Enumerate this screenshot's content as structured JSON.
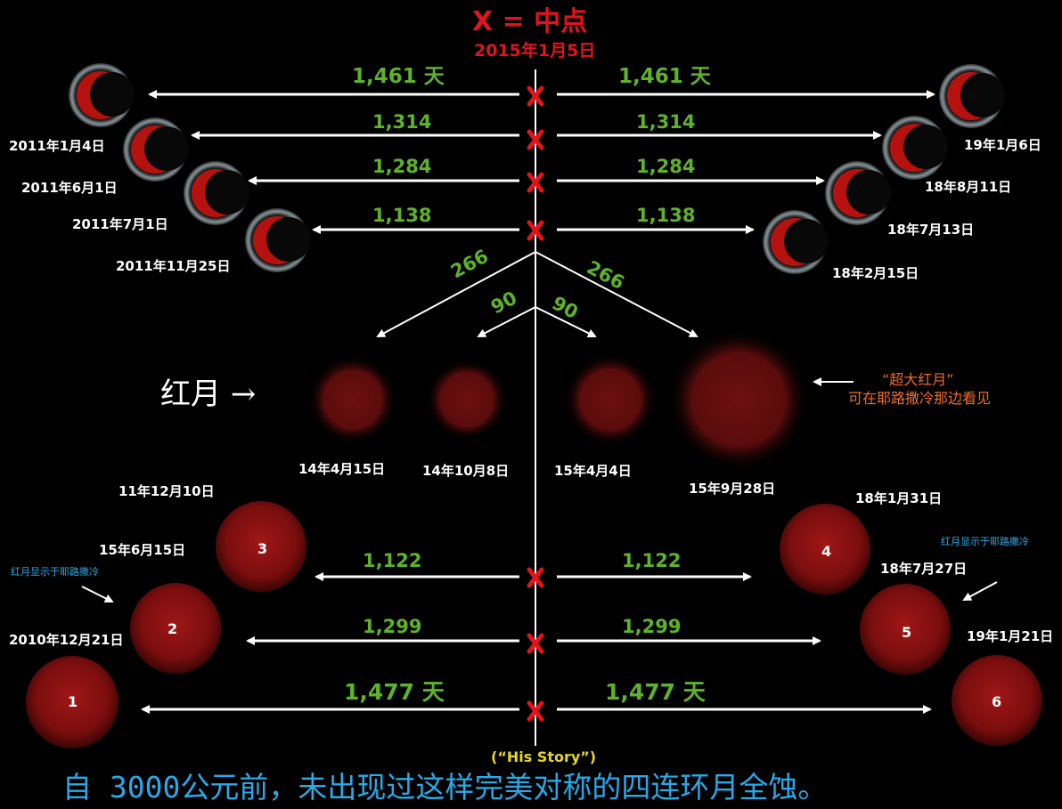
{
  "header": {
    "legend": "X = 中点",
    "midpoint_date": "2015年1月5日"
  },
  "intervals": {
    "row1": "1,461 天",
    "row2": "1,314",
    "row3": "1,284",
    "row4": "1,138",
    "branch_outer": "266",
    "branch_inner": "90",
    "row5": "1,122",
    "row6": "1,299",
    "row7": "1,477 天"
  },
  "partial_eclipses": {
    "left": [
      "2011年1月4日",
      "2011年6月1日",
      "2011年7月1日",
      "2011年11月25日"
    ],
    "right": [
      "19年1月6日",
      "18年8月11日",
      "18年7月13日",
      "18年2月15日"
    ]
  },
  "blood_moons": {
    "label": "红月 →",
    "dates": [
      "14年4月15日",
      "14年10月8日",
      "15年4月4日",
      "15年9月28日"
    ],
    "super_note_line1": "“超大红月”",
    "super_note_line2": "可在耶路撒冷那边看见"
  },
  "numbered_moons": {
    "moon1": {
      "num": "1",
      "date": "2010年12月21日"
    },
    "moon2": {
      "num": "2",
      "date": "15年6月15日"
    },
    "moon3": {
      "num": "3",
      "date": "11年12月10日"
    },
    "moon4": {
      "num": "4",
      "date": "18年1月31日"
    },
    "moon5": {
      "num": "5",
      "date": "18年7月27日"
    },
    "moon6": {
      "num": "6",
      "date": "19年1月21日"
    },
    "note_left": "红月显示于耶路撒冷",
    "note_right": "红月显示于耶路撒冷"
  },
  "footer": {
    "his_story": "(“His Story”)",
    "caption": "自 3000公元前，未出现过这样完美对称的四连环月全蚀。"
  },
  "colors": {
    "background": "#000000",
    "interval_green": "#5db32a",
    "midpoint_red": "#e0141a",
    "note_blue": "#2aa9e8",
    "note_orange": "#f26d2a",
    "moon_red": "#8e1212"
  }
}
